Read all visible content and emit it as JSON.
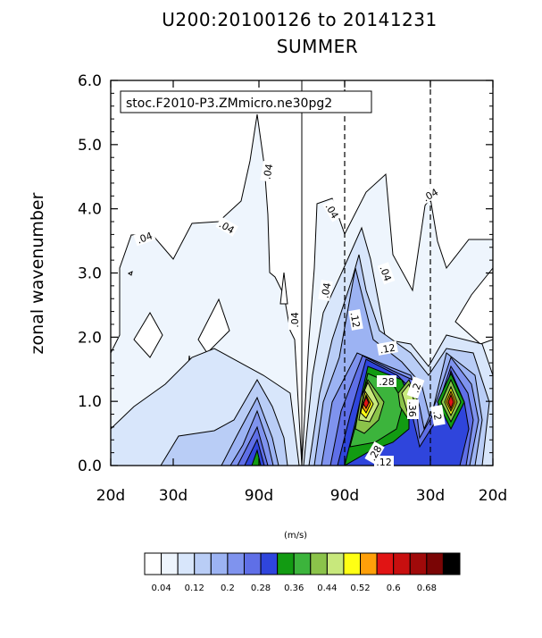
{
  "title_line1": "U200:20100126 to 20141231",
  "title_line2": "SUMMER",
  "chart_data": {
    "type": "contour",
    "inset_label": "stoc.F2010-P3.ZMmicro.ne30pg2",
    "ylabel": "zonal wavenumber",
    "xlabel": "",
    "ylim": [
      0.0,
      6.0
    ],
    "y_ticks": [
      "0.0",
      "1.0",
      "2.0",
      "3.0",
      "4.0",
      "5.0",
      "6.0"
    ],
    "x_ticks": [
      "20d",
      "30d",
      "90d",
      "90d",
      "30d",
      "20d"
    ],
    "units": "(m/s)",
    "contour_labels": [
      ".04",
      ".04",
      ".04",
      ".04",
      ".04",
      ".04",
      ".04",
      ".04",
      ".12",
      ".12",
      ".12",
      ".28",
      ".28",
      ".2",
      ".2",
      ".36"
    ],
    "colorbar": {
      "levels": [
        "0.04",
        "0.12",
        "0.2",
        "0.28",
        "0.36",
        "0.44",
        "0.52",
        "0.6",
        "0.68"
      ],
      "colors": [
        "#ffffff",
        "#eef5fd",
        "#d8e6fb",
        "#b9cdf6",
        "#9cb3f3",
        "#7f93ee",
        "#5f6fe7",
        "#2f45dc",
        "#129b12",
        "#3cb43c",
        "#8bc34a",
        "#c8e87c",
        "#ffff14",
        "#ffa00a",
        "#e11414",
        "#c80f0f",
        "#a00a0a",
        "#7a0505",
        "#000000"
      ]
    },
    "dashed_lines_at": [
      "90d",
      "30d"
    ],
    "solid_divider_at": "frequency 0"
  }
}
